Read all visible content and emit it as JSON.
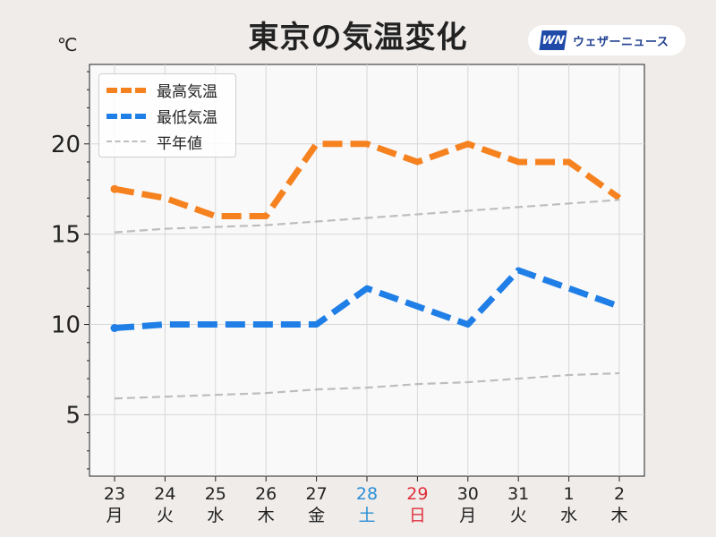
{
  "header": {
    "title": "東京の気温変化",
    "unit": "℃",
    "logo_mark": "WN",
    "logo_text": "ウェザーニュース"
  },
  "colors": {
    "max": "#f5821f",
    "min": "#1f7fe6",
    "normal": "#bdbdbd",
    "saturday": "#2c8fd6",
    "sunday": "#e0303c",
    "plot_bg": "#faf9fa",
    "grid": "#d8d8d8"
  },
  "chart_data": {
    "type": "line",
    "categories": [
      "23",
      "24",
      "25",
      "26",
      "27",
      "28",
      "29",
      "30",
      "31",
      "1",
      "2"
    ],
    "weekdays": [
      "月",
      "火",
      "水",
      "木",
      "金",
      "土",
      "日",
      "月",
      "火",
      "水",
      "木"
    ],
    "day_kind": [
      "weekday",
      "weekday",
      "weekday",
      "weekday",
      "weekday",
      "saturday",
      "sunday",
      "weekday",
      "weekday",
      "weekday",
      "weekday"
    ],
    "series": [
      {
        "name": "最高気温",
        "key": "max",
        "style": "dashed-thick",
        "values": [
          17.5,
          17,
          16,
          16,
          20,
          20,
          19,
          20,
          19,
          19,
          17
        ]
      },
      {
        "name": "最低気温",
        "key": "min",
        "style": "dashed-thick",
        "values": [
          9.8,
          10,
          10,
          10,
          10,
          12,
          11,
          10,
          13,
          12,
          11
        ]
      },
      {
        "name": "平年値",
        "key": "normal",
        "style": "dashed-thin",
        "values": [
          15.1,
          15.3,
          15.4,
          15.5,
          15.7,
          15.9,
          16.1,
          16.3,
          16.5,
          16.7,
          16.9
        ]
      },
      {
        "name": "",
        "key": "normal",
        "style": "dashed-thin",
        "values": [
          5.9,
          6.0,
          6.1,
          6.2,
          6.4,
          6.5,
          6.7,
          6.8,
          7.0,
          7.2,
          7.3
        ]
      }
    ],
    "ylim": [
      1.6,
      24.4
    ],
    "yticks": [
      5,
      10,
      15,
      20
    ],
    "grid": true,
    "legend": "top-left"
  }
}
